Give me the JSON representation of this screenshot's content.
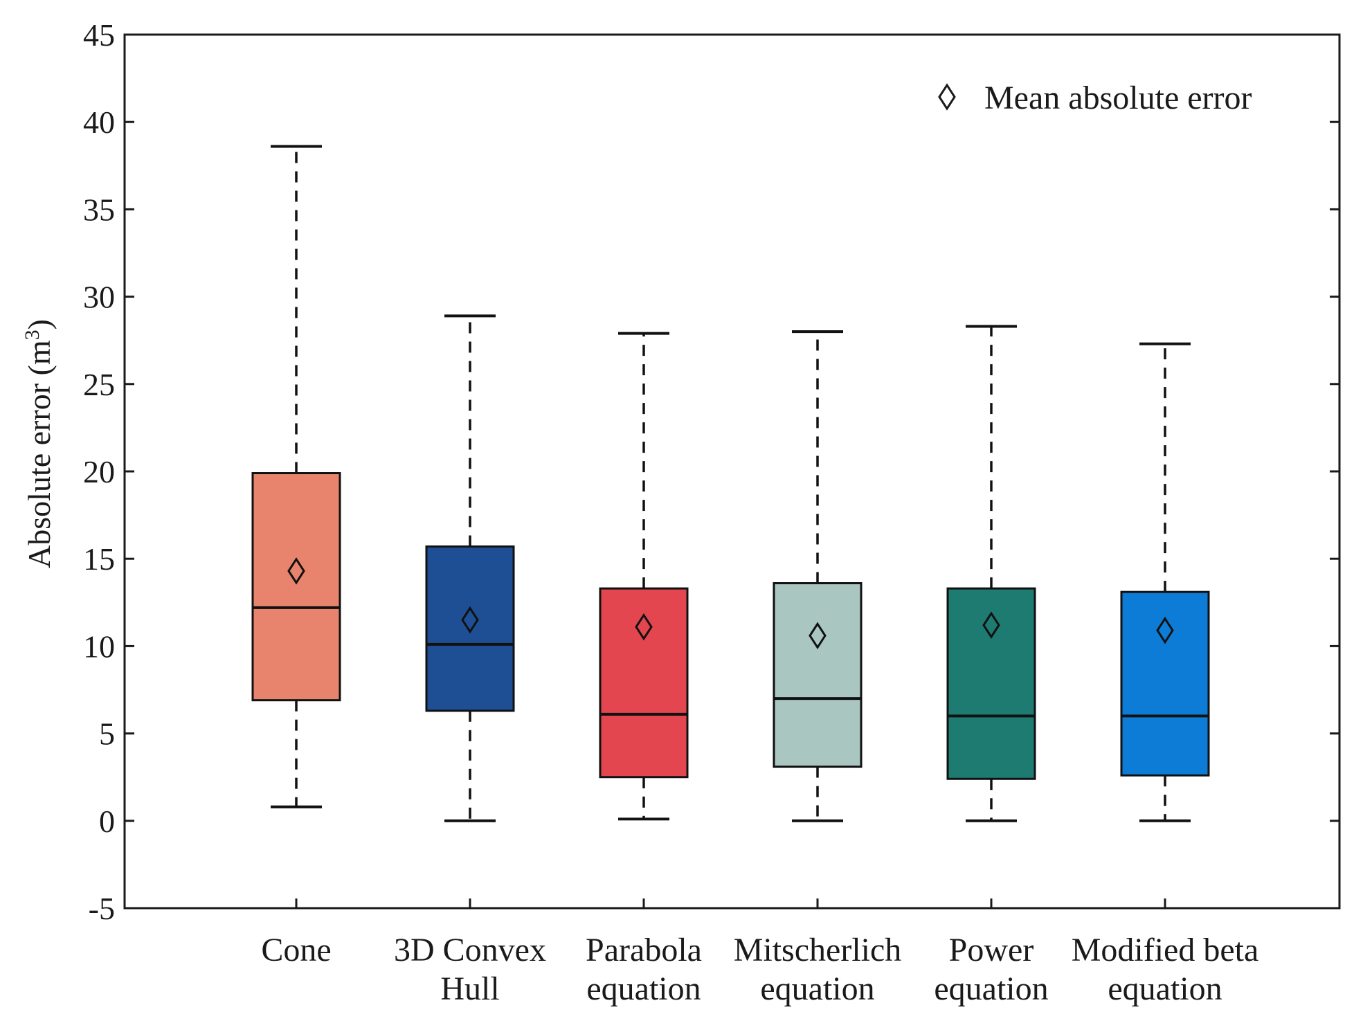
{
  "chart_data": {
    "type": "box",
    "title": "",
    "xlabel": "",
    "ylabel": "Absolute  error   (m",
    "ylabel_sup": "3",
    "ylabel_close": ")",
    "ylim": [
      -5,
      45
    ],
    "yticks": [
      -5,
      0,
      5,
      10,
      15,
      20,
      25,
      30,
      35,
      40,
      45
    ],
    "grid": false,
    "legend": {
      "label": "Mean absolute error",
      "marker": "diamond",
      "placement": "top-right"
    },
    "categories": [
      {
        "label_lines": [
          "Cone"
        ],
        "color": "#E8846E",
        "whisker_low": 0.8,
        "q1": 6.9,
        "median": 12.2,
        "q3": 19.9,
        "whisker_high": 38.6,
        "mean": 14.3
      },
      {
        "label_lines": [
          "3D Convex",
          "Hull"
        ],
        "color": "#1E4E94",
        "whisker_low": 0.0,
        "q1": 6.3,
        "median": 10.1,
        "q3": 15.7,
        "whisker_high": 28.9,
        "mean": 11.5
      },
      {
        "label_lines": [
          "Parabola",
          "equation"
        ],
        "color": "#E3464F",
        "whisker_low": 0.1,
        "q1": 2.5,
        "median": 6.1,
        "q3": 13.3,
        "whisker_high": 27.9,
        "mean": 11.1
      },
      {
        "label_lines": [
          "Mitscherlich",
          "equation"
        ],
        "color": "#A9C6C0",
        "whisker_low": 0.0,
        "q1": 3.1,
        "median": 7.0,
        "q3": 13.6,
        "whisker_high": 28.0,
        "mean": 10.6
      },
      {
        "label_lines": [
          "Power",
          "equation"
        ],
        "color": "#1E7B72",
        "whisker_low": 0.0,
        "q1": 2.4,
        "median": 6.0,
        "q3": 13.3,
        "whisker_high": 28.3,
        "mean": 11.2
      },
      {
        "label_lines": [
          "Modified beta",
          "equation"
        ],
        "color": "#0C7CD6",
        "whisker_low": 0.0,
        "q1": 2.6,
        "median": 6.0,
        "q3": 13.1,
        "whisker_high": 27.3,
        "mean": 10.9
      }
    ]
  }
}
